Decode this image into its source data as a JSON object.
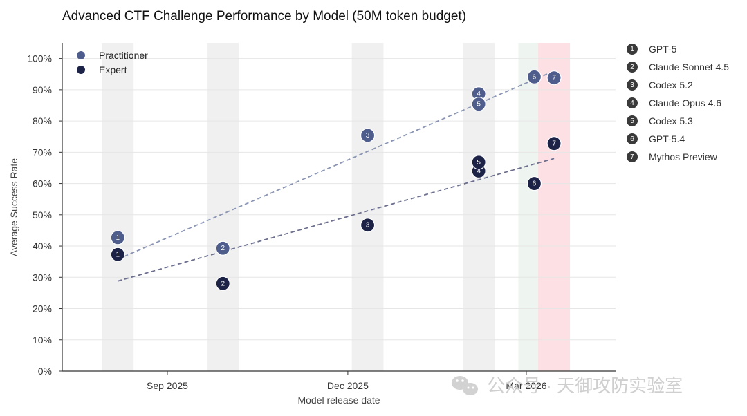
{
  "chart_data": {
    "type": "scatter",
    "title": "Advanced CTF Challenge Performance by Model (50M token budget)",
    "xlabel": "Model release date",
    "ylabel": "Average Success Rate",
    "ylim": [
      0,
      105
    ],
    "yticks": [
      0,
      10,
      20,
      30,
      40,
      50,
      60,
      70,
      80,
      90,
      100
    ],
    "ytick_suffix": "%",
    "xlim": [
      "2025-07-10",
      "2026-04-15"
    ],
    "xticks": [
      {
        "date": "2025-09-01",
        "label": "Sep 2025"
      },
      {
        "date": "2025-12-01",
        "label": "Dec 2025"
      },
      {
        "date": "2026-03-01",
        "label": "Mar 2026"
      }
    ],
    "grid": "horizontal",
    "legend_position": "top-left",
    "series": [
      {
        "name": "Practitioner",
        "color": "#4e5d8c",
        "trend_color": "#8a95b4",
        "points": [
          {
            "model": 1,
            "date": "2025-08-07",
            "value": 42.7
          },
          {
            "model": 2,
            "date": "2025-09-29",
            "value": 39.3
          },
          {
            "model": 3,
            "date": "2025-12-11",
            "value": 75.4
          },
          {
            "model": 4,
            "date": "2026-02-05",
            "value": 88.7
          },
          {
            "model": 5,
            "date": "2026-02-05",
            "value": 85.4
          },
          {
            "model": 6,
            "date": "2026-03-05",
            "value": 94.1
          },
          {
            "model": 7,
            "date": "2026-03-15",
            "value": 93.8
          }
        ],
        "trend": {
          "x0": "2025-08-07",
          "y0": 35.8,
          "x1": "2026-03-15",
          "y1": 96.0
        }
      },
      {
        "name": "Expert",
        "color": "#1c2347",
        "trend_color": "#6c6f8e",
        "points": [
          {
            "model": 1,
            "date": "2025-08-07",
            "value": 37.3
          },
          {
            "model": 2,
            "date": "2025-09-29",
            "value": 28.0
          },
          {
            "model": 3,
            "date": "2025-12-11",
            "value": 46.7
          },
          {
            "model": 4,
            "date": "2026-02-05",
            "value": 64.0
          },
          {
            "model": 5,
            "date": "2026-02-05",
            "value": 66.8
          },
          {
            "model": 6,
            "date": "2026-03-05",
            "value": 60.0
          },
          {
            "model": 7,
            "date": "2026-03-15",
            "value": 72.8
          }
        ],
        "trend": {
          "x0": "2025-08-07",
          "y0": 28.8,
          "x1": "2026-03-15",
          "y1": 68.0
        }
      }
    ],
    "release_bands": [
      {
        "date": "2025-08-07",
        "color": "#f0f0f0"
      },
      {
        "date": "2025-09-29",
        "color": "#f0f0f0"
      },
      {
        "date": "2025-12-11",
        "color": "#f0f0f0"
      },
      {
        "date": "2026-02-05",
        "color": "#f0f0f0"
      },
      {
        "date": "2026-03-05",
        "color": "#eef4ef"
      },
      {
        "date": "2026-03-15",
        "color": "#fde0e3"
      }
    ],
    "models": [
      {
        "num": "1",
        "name": "GPT-5"
      },
      {
        "num": "2",
        "name": "Claude Sonnet 4.5"
      },
      {
        "num": "3",
        "name": "Codex 5.2"
      },
      {
        "num": "4",
        "name": "Claude Opus 4.6"
      },
      {
        "num": "5",
        "name": "Codex 5.3"
      },
      {
        "num": "6",
        "name": "GPT-5.4"
      },
      {
        "num": "7",
        "name": "Mythos Preview"
      }
    ]
  },
  "watermark": "公众号 · 天御攻防实验室",
  "colors": {
    "axis": "#333333",
    "grid": "#e6e6e6",
    "key_marker": "#3a3a3a"
  }
}
